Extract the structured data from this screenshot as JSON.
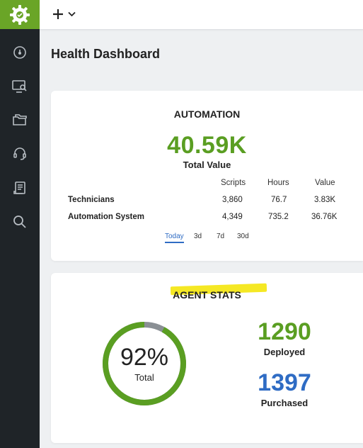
{
  "header": {
    "new_button_icon": "plus-icon",
    "new_button_caret": "chevron-down-icon"
  },
  "sidebar": {
    "logo": "gear-logo-icon",
    "items": [
      "dashboard-icon",
      "remote-monitor-icon",
      "folders-icon",
      "headset-icon",
      "reports-icon",
      "search-icon"
    ]
  },
  "page": {
    "title": "Health Dashboard"
  },
  "automation": {
    "title": "AUTOMATION",
    "total_value": "40.59K",
    "total_label": "Total Value",
    "columns": [
      "Scripts",
      "Hours",
      "Value"
    ],
    "rows": [
      {
        "label": "Technicians",
        "scripts": "3,860",
        "hours": "76.7",
        "value": "3.83K"
      },
      {
        "label": "Automation System",
        "scripts": "4,349",
        "hours": "735.2",
        "value": "36.76K"
      }
    ],
    "ranges": [
      "Today",
      "3d",
      "7d",
      "30d"
    ],
    "active_range": "Today"
  },
  "agent_stats": {
    "title": "AGENT STATS",
    "percent": "92%",
    "percent_label": "Total",
    "percent_fraction": 0.92,
    "deployed_value": "1290",
    "deployed_label": "Deployed",
    "purchased_value": "1397",
    "purchased_label": "Purchased",
    "colors": {
      "green": "#5a9e22",
      "blue": "#2f6cc4",
      "ring_rest": "#8a8f94",
      "highlight": "#f5e824"
    }
  }
}
